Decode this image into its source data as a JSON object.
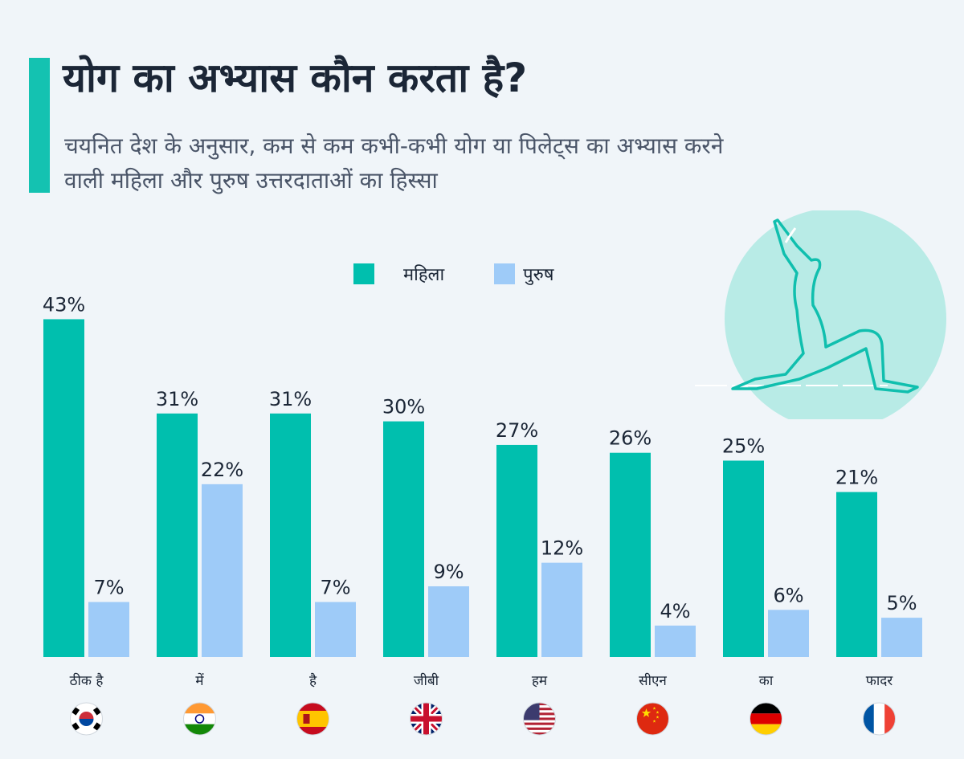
{
  "title": "योग का अभ्यास कौन करता है?",
  "subtitle": "चयनित देश के अनुसार, कम से कम कभी-कभी योग या पिलेट्स का अभ्यास करने वाली महिला और पुरुष उत्तरदाताओं का हिस्सा",
  "colors": {
    "women": "#00bfae",
    "men": "#9ecbf8",
    "accent": "#14c2b1",
    "circle": "#b8ebe6"
  },
  "chart_data": {
    "type": "bar",
    "categories": [
      "ठीक है",
      "में",
      "है",
      "जीबी",
      "हम",
      "सीएन",
      "का",
      "फादर"
    ],
    "flags": [
      "south-korea-flag-icon",
      "india-flag-icon",
      "spain-flag-icon",
      "uk-flag-icon",
      "usa-flag-icon",
      "china-flag-icon",
      "germany-flag-icon",
      "france-flag-icon"
    ],
    "series": [
      {
        "name": "महिला",
        "values": [
          43,
          31,
          31,
          30,
          27,
          26,
          25,
          21
        ],
        "labels": [
          "43%",
          "31%",
          "31%",
          "30%",
          "27%",
          "26%",
          "25%",
          "21%"
        ]
      },
      {
        "name": "पुरुष",
        "values": [
          7,
          22,
          7,
          9,
          12,
          4,
          6,
          5
        ],
        "labels": [
          "7%",
          "22%",
          "7%",
          "9%",
          "12%",
          "4%",
          "6%",
          "5%"
        ]
      }
    ],
    "ylim": [
      0,
      43
    ],
    "legend": "top-center",
    "grid": false
  }
}
